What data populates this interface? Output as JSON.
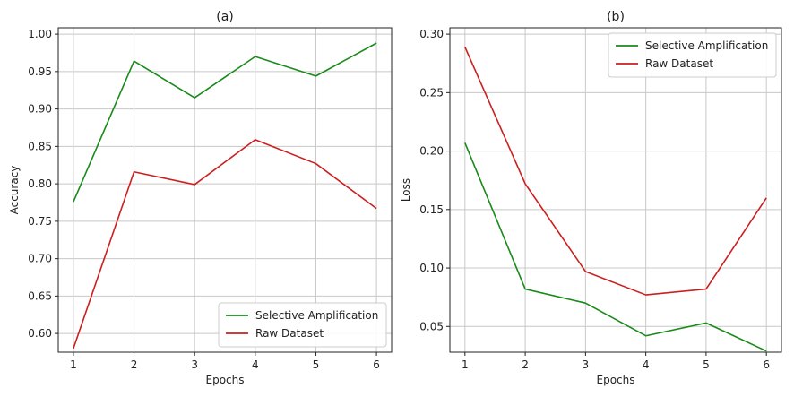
{
  "colors": {
    "green": "#1a8a1a",
    "red": "#cc1f1f",
    "grid": "#c8c8c8",
    "axis": "#222222"
  },
  "chart_data": [
    {
      "type": "line",
      "title": "(a)",
      "xlabel": "Epochs",
      "ylabel": "Accuracy",
      "x": [
        1,
        2,
        3,
        4,
        5,
        6
      ],
      "xticks": [
        "1",
        "2",
        "3",
        "4",
        "5",
        "6"
      ],
      "yticks": [
        "0.60",
        "0.65",
        "0.70",
        "0.75",
        "0.80",
        "0.85",
        "0.90",
        "0.95",
        "1.00"
      ],
      "yticks_values": [
        0.6,
        0.65,
        0.7,
        0.75,
        0.8,
        0.85,
        0.9,
        0.95,
        1.0
      ],
      "ylim": [
        0.575,
        1.0
      ],
      "grid": true,
      "legend_position": "bottom-right",
      "series": [
        {
          "name": "Selective Amplification",
          "color": "#1a8a1a",
          "values": [
            0.776,
            0.964,
            0.915,
            0.97,
            0.944,
            0.988
          ]
        },
        {
          "name": "Raw Dataset",
          "color": "#cc1f1f",
          "values": [
            0.58,
            0.816,
            0.799,
            0.859,
            0.827,
            0.767
          ]
        }
      ]
    },
    {
      "type": "line",
      "title": "(b)",
      "xlabel": "Epochs",
      "ylabel": "Loss",
      "x": [
        1,
        2,
        3,
        4,
        5,
        6
      ],
      "xticks": [
        "1",
        "2",
        "3",
        "4",
        "5",
        "6"
      ],
      "yticks": [
        "0.05",
        "0.10",
        "0.15",
        "0.20",
        "0.25",
        "0.30"
      ],
      "yticks_values": [
        0.05,
        0.1,
        0.15,
        0.2,
        0.25,
        0.3
      ],
      "ylim": [
        0.028,
        0.3
      ],
      "grid": true,
      "legend_position": "top-right",
      "series": [
        {
          "name": "Selective Amplification",
          "color": "#1a8a1a",
          "values": [
            0.207,
            0.082,
            0.07,
            0.042,
            0.053,
            0.029
          ]
        },
        {
          "name": "Raw Dataset",
          "color": "#cc1f1f",
          "values": [
            0.289,
            0.172,
            0.097,
            0.077,
            0.082,
            0.16
          ]
        }
      ]
    }
  ]
}
